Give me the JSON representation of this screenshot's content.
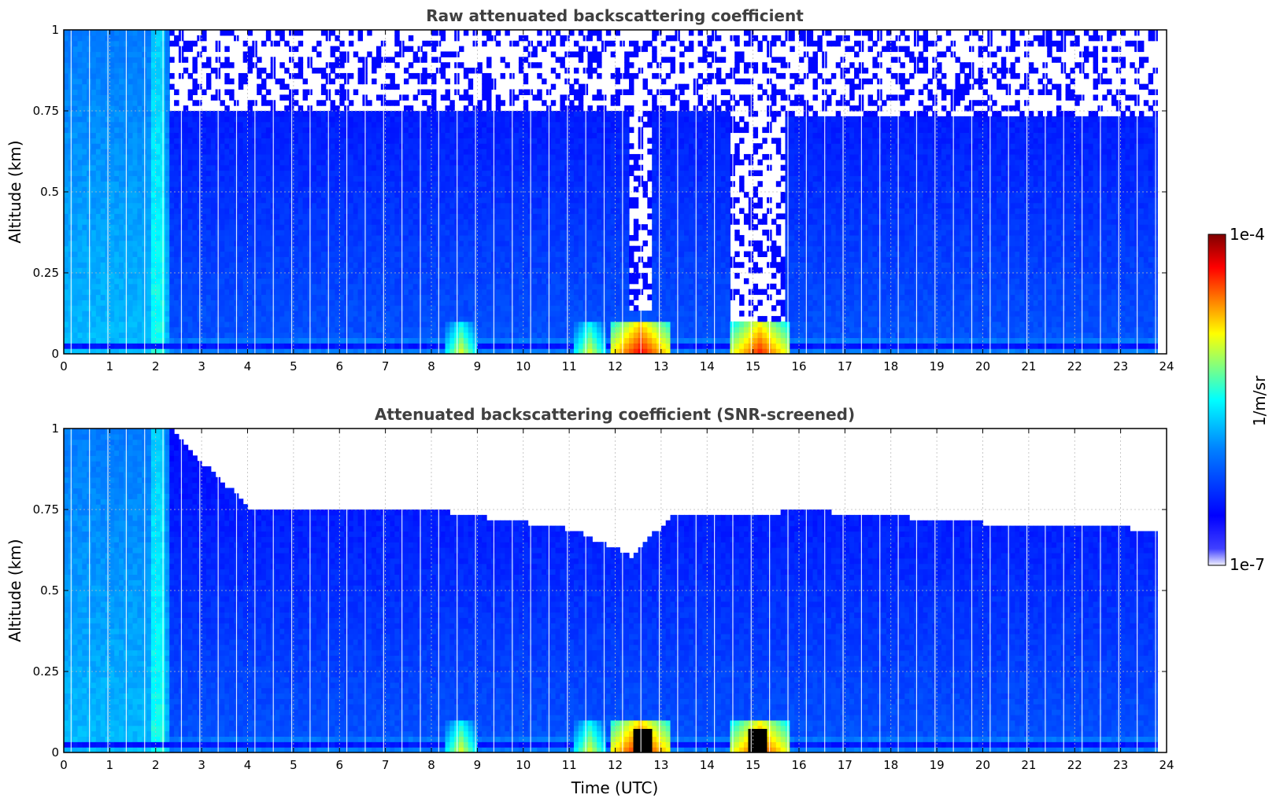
{
  "chart_data": [
    {
      "type": "heatmap",
      "title": "Raw attenuated backscattering coefficient",
      "xlabel": "",
      "ylabel": "Altitude (km)",
      "xlim": [
        0,
        24
      ],
      "ylim": [
        0,
        1
      ],
      "x_ticks": [
        "0",
        "1",
        "2",
        "3",
        "4",
        "5",
        "6",
        "7",
        "8",
        "9",
        "10",
        "11",
        "12",
        "13",
        "14",
        "15",
        "16",
        "17",
        "18",
        "19",
        "20",
        "21",
        "22",
        "23",
        "24"
      ],
      "y_ticks": [
        "0",
        "0.25",
        "0.5",
        "0.75",
        "1"
      ],
      "grid": true,
      "data_end_hour": 23.8,
      "colorscale": "jet",
      "regions": [
        {
          "t_start": 0.0,
          "t_end": 2.3,
          "alt_top": 1.0,
          "value": "1e-5.6"
        },
        {
          "t_start": 2.3,
          "t_end": 12.3,
          "alt_top": 0.75,
          "value": "1e-6.1"
        },
        {
          "t_start": 12.3,
          "t_end": 12.8,
          "alt_top": 0.12,
          "value": "1e-6.3"
        },
        {
          "t_start": 12.8,
          "t_end": 14.5,
          "alt_top": 0.75,
          "value": "1e-6.1"
        },
        {
          "t_start": 14.5,
          "t_end": 15.7,
          "alt_top": 0.1,
          "value": "1e-6.3"
        },
        {
          "t_start": 15.7,
          "t_end": 23.8,
          "alt_top": 0.72,
          "value": "1e-6.1"
        }
      ],
      "near_surface_peaks": [
        {
          "t": 8.6,
          "value": "1e-5.0"
        },
        {
          "t": 11.4,
          "value": "1e-5.0"
        },
        {
          "t": 12.5,
          "value": "1e-4.3"
        },
        {
          "t": 15.1,
          "value": "1e-4.4"
        }
      ]
    },
    {
      "type": "heatmap",
      "title": "Attenuated backscattering coefficient (SNR-screened)",
      "xlabel": "Time (UTC)",
      "ylabel": "Altitude (km)",
      "xlim": [
        0,
        24
      ],
      "ylim": [
        0,
        1
      ],
      "x_ticks": [
        "0",
        "1",
        "2",
        "3",
        "4",
        "5",
        "6",
        "7",
        "8",
        "9",
        "10",
        "11",
        "12",
        "13",
        "14",
        "15",
        "16",
        "17",
        "18",
        "19",
        "20",
        "21",
        "22",
        "23",
        "24"
      ],
      "y_ticks": [
        "0",
        "0.25",
        "0.5",
        "0.75",
        "1"
      ],
      "grid": true,
      "data_end_hour": 23.8,
      "colorscale": "jet",
      "screened_top": [
        {
          "t": 0.0,
          "alt": 1.0
        },
        {
          "t": 2.3,
          "alt": 1.0
        },
        {
          "t": 3.0,
          "alt": 0.88
        },
        {
          "t": 4.0,
          "alt": 0.75
        },
        {
          "t": 8.0,
          "alt": 0.74
        },
        {
          "t": 11.0,
          "alt": 0.68
        },
        {
          "t": 12.3,
          "alt": 0.6
        },
        {
          "t": 13.2,
          "alt": 0.72
        },
        {
          "t": 14.5,
          "alt": 0.72
        },
        {
          "t": 16.0,
          "alt": 0.74
        },
        {
          "t": 20.0,
          "alt": 0.7
        },
        {
          "t": 23.8,
          "alt": 0.68
        }
      ],
      "saturated_points": [
        {
          "t": 12.6,
          "value": "saturated"
        },
        {
          "t": 15.1,
          "value": "saturated"
        }
      ]
    }
  ],
  "colorbar": {
    "min_label": "1e-7",
    "max_label": "1e-4",
    "unit_label": "1/m/sr",
    "colors": [
      "#e8e8ff",
      "#0000ff",
      "#0080ff",
      "#00ffff",
      "#80ff80",
      "#ffff00",
      "#ff8000",
      "#ff0000",
      "#800000"
    ]
  }
}
